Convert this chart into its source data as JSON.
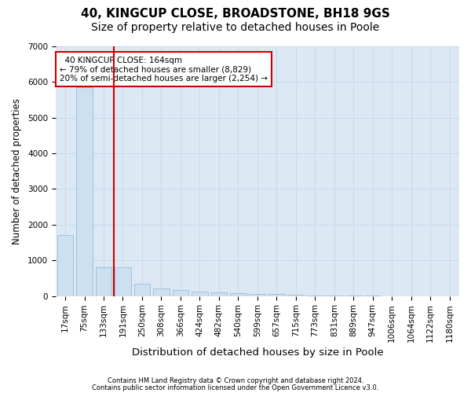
{
  "title1": "40, KINGCUP CLOSE, BROADSTONE, BH18 9GS",
  "title2": "Size of property relative to detached houses in Poole",
  "xlabel": "Distribution of detached houses by size in Poole",
  "ylabel": "Number of detached properties",
  "footer1": "Contains HM Land Registry data © Crown copyright and database right 2024.",
  "footer2": "Contains public sector information licensed under the Open Government Licence v3.0.",
  "bar_labels": [
    "17sqm",
    "75sqm",
    "133sqm",
    "191sqm",
    "250sqm",
    "308sqm",
    "366sqm",
    "424sqm",
    "482sqm",
    "540sqm",
    "599sqm",
    "657sqm",
    "715sqm",
    "773sqm",
    "831sqm",
    "889sqm",
    "947sqm",
    "1006sqm",
    "1064sqm",
    "1122sqm",
    "1180sqm"
  ],
  "bar_values": [
    1700,
    5850,
    800,
    800,
    350,
    210,
    170,
    130,
    100,
    80,
    60,
    50,
    30,
    10,
    5,
    3,
    2,
    1,
    1,
    0,
    0
  ],
  "bar_color": "#cce0f0",
  "bar_edgecolor": "#99bbdd",
  "red_line_index": 2.55,
  "annotation_text": "  40 KINGCUP CLOSE: 164sqm  \n← 79% of detached houses are smaller (8,829)\n20% of semi-detached houses are larger (2,254) →",
  "annotation_box_color": "#ffffff",
  "annotation_box_edgecolor": "#cc0000",
  "ylim": [
    0,
    7000
  ],
  "yticks": [
    0,
    1000,
    2000,
    3000,
    4000,
    5000,
    6000,
    7000
  ],
  "grid_color": "#c8d8ec",
  "plot_bg_color": "#dce8f4",
  "red_line_color": "#cc0000",
  "title1_fontsize": 11,
  "title2_fontsize": 10,
  "xlabel_fontsize": 9.5,
  "ylabel_fontsize": 8.5,
  "tick_fontsize": 7.5,
  "annotation_fontsize": 7.5,
  "footer_fontsize": 6.0
}
